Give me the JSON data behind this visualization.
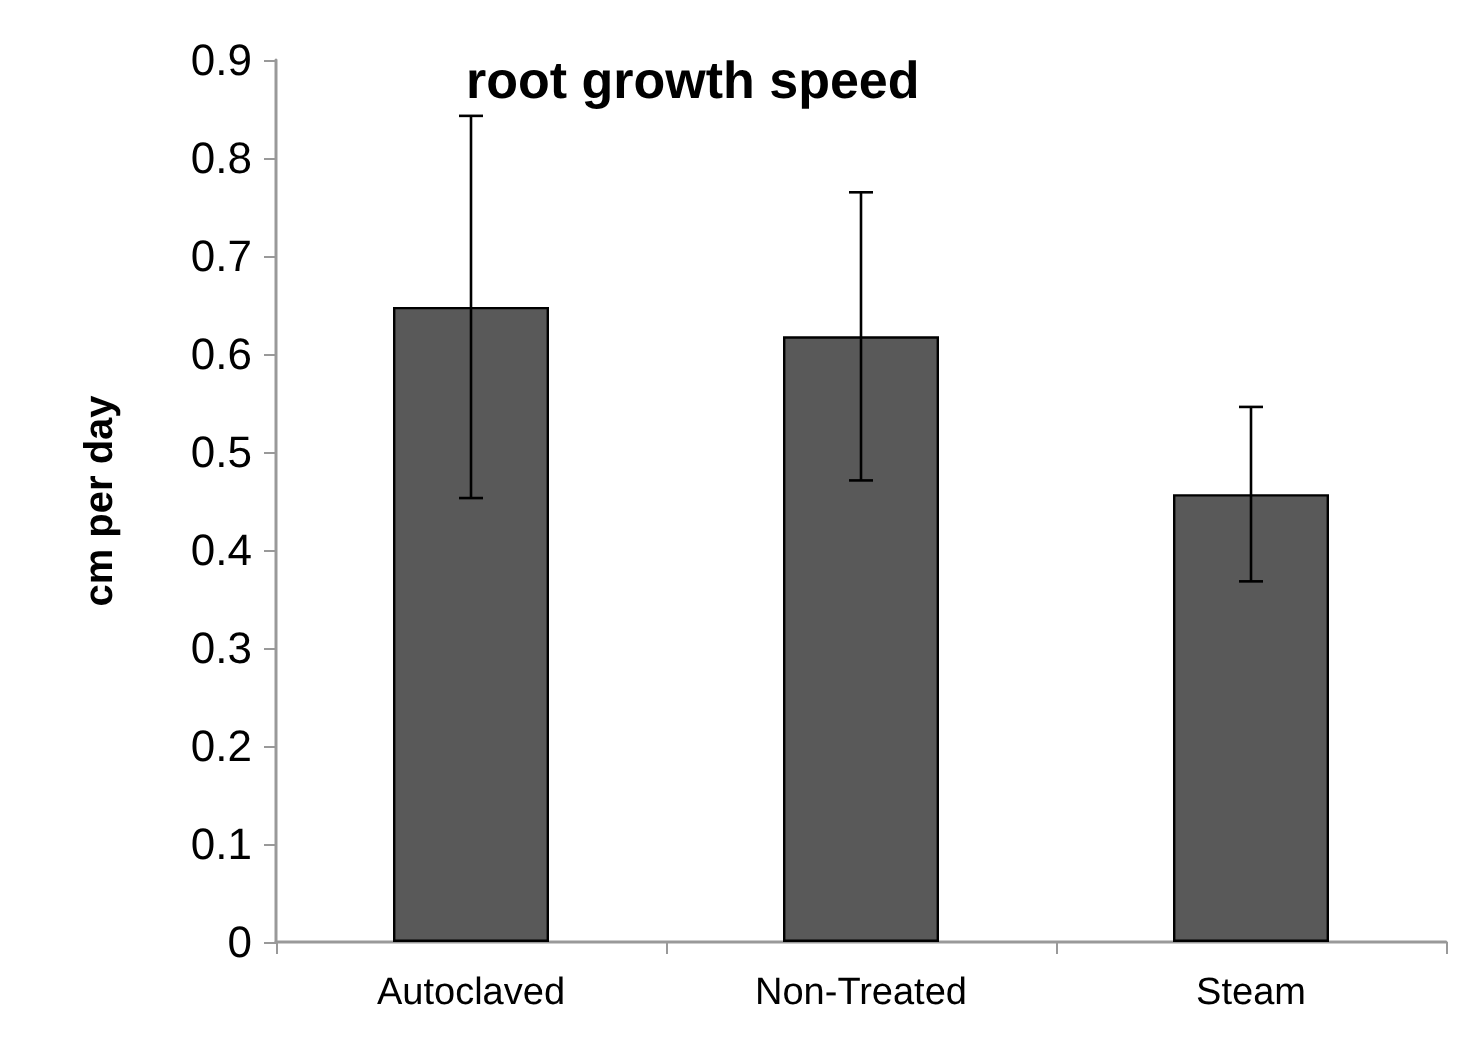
{
  "chart_data": {
    "type": "bar",
    "title": "root growth speed",
    "ylabel": "cm per day",
    "categories": [
      "Autoclaved",
      "Non-Treated",
      "Steam"
    ],
    "values": [
      0.648,
      0.618,
      0.457
    ],
    "errors": [
      0.195,
      0.147,
      0.089
    ],
    "color": "#595959",
    "ylim": [
      0,
      0.9
    ],
    "yticks": [
      0,
      0.1,
      0.2,
      0.3,
      0.4,
      0.5,
      0.6,
      0.7,
      0.8,
      0.9
    ]
  }
}
